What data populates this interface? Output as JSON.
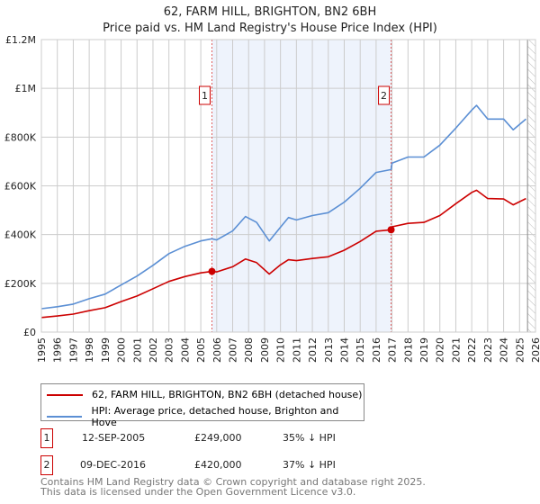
{
  "title": "62, FARM HILL, BRIGHTON, BN2 6BH",
  "subtitle": "Price paid vs. HM Land Registry's House Price Index (HPI)",
  "chart_data": {
    "type": "line",
    "title": "62, FARM HILL, BRIGHTON, BN2 6BH",
    "subtitle": "Price paid vs. HM Land Registry's House Price Index (HPI)",
    "xlim": [
      1995,
      2026
    ],
    "ylim": [
      0,
      1200000
    ],
    "x_ticks": [
      "1995",
      "1996",
      "1997",
      "1998",
      "1999",
      "2000",
      "2001",
      "2002",
      "2003",
      "2004",
      "2005",
      "2006",
      "2007",
      "2008",
      "2009",
      "2010",
      "2011",
      "2012",
      "2013",
      "2014",
      "2015",
      "2016",
      "2017",
      "2018",
      "2019",
      "2020",
      "2021",
      "2022",
      "2023",
      "2024",
      "2025",
      "2026"
    ],
    "y_ticks": [
      {
        "v": 0,
        "label": "£0"
      },
      {
        "v": 200000,
        "label": "£200K"
      },
      {
        "v": 400000,
        "label": "£400K"
      },
      {
        "v": 600000,
        "label": "£600K"
      },
      {
        "v": 800000,
        "label": "£800K"
      },
      {
        "v": 1000000,
        "label": "£1M"
      },
      {
        "v": 1200000,
        "label": "£1.2M"
      }
    ],
    "grid": true,
    "series": [
      {
        "name": "62, FARM HILL, BRIGHTON, BN2 6BH (detached house)",
        "color": "#cc0000",
        "x": [
          1995,
          1996,
          1997,
          1998,
          1999,
          2000,
          2001,
          2002,
          2003,
          2004,
          2005,
          2005.7,
          2006,
          2007,
          2007.8,
          2008.5,
          2009.3,
          2010,
          2010.5,
          2011,
          2012,
          2013,
          2014,
          2015,
          2016,
          2016.94,
          2017,
          2018,
          2019,
          2020,
          2021,
          2022,
          2022.3,
          2023,
          2024,
          2024.6,
          2025.4
        ],
        "y": [
          60000,
          66000,
          74000,
          88000,
          100000,
          125000,
          148000,
          178000,
          208000,
          228000,
          243000,
          249000,
          247000,
          268000,
          300000,
          285000,
          238000,
          276000,
          297000,
          293000,
          302000,
          309000,
          336000,
          372000,
          414000,
          420000,
          432000,
          446000,
          450000,
          478000,
          527000,
          573000,
          582000,
          548000,
          546000,
          522000,
          548000
        ]
      },
      {
        "name": "HPI: Average price, detached house, Brighton and Hove",
        "color": "#5b8fd4",
        "x": [
          1995,
          1996,
          1997,
          1998,
          1999,
          2000,
          2001,
          2002,
          2003,
          2004,
          2005,
          2005.7,
          2006,
          2007,
          2007.8,
          2008.5,
          2009.3,
          2010,
          2010.5,
          2011,
          2012,
          2013,
          2014,
          2015,
          2016,
          2016.94,
          2017,
          2018,
          2019,
          2020,
          2021,
          2022,
          2022.3,
          2023,
          2024,
          2024.6,
          2025.4
        ],
        "y": [
          96000,
          104000,
          115000,
          137000,
          156000,
          193000,
          230000,
          274000,
          322000,
          352000,
          374000,
          383000,
          378000,
          415000,
          474000,
          450000,
          374000,
          430000,
          470000,
          460000,
          478000,
          490000,
          533000,
          590000,
          655000,
          667000,
          693000,
          718000,
          718000,
          767000,
          837000,
          911000,
          930000,
          874000,
          874000,
          830000,
          874000
        ]
      }
    ],
    "sales": [
      {
        "label": "1",
        "x": 2005.7,
        "y": 249000
      },
      {
        "label": "2",
        "x": 2016.94,
        "y": 420000
      }
    ],
    "shaded_range": [
      2005.7,
      2016.94
    ],
    "forecast_hatch_from": 2025.5
  },
  "legend": {
    "items": [
      {
        "label": "62, FARM HILL, BRIGHTON, BN2 6BH (detached house)",
        "color": "#cc0000"
      },
      {
        "label": "HPI: Average price, detached house, Brighton and Hove",
        "color": "#5b8fd4"
      }
    ]
  },
  "sales_table": [
    {
      "num": "1",
      "date": "12-SEP-2005",
      "price": "£249,000",
      "hpi": "35% ↓ HPI"
    },
    {
      "num": "2",
      "date": "09-DEC-2016",
      "price": "£420,000",
      "hpi": "37% ↓ HPI"
    }
  ],
  "footer": {
    "line1": "Contains HM Land Registry data © Crown copyright and database right 2025.",
    "line2": "This data is licensed under the Open Government Licence v3.0."
  }
}
